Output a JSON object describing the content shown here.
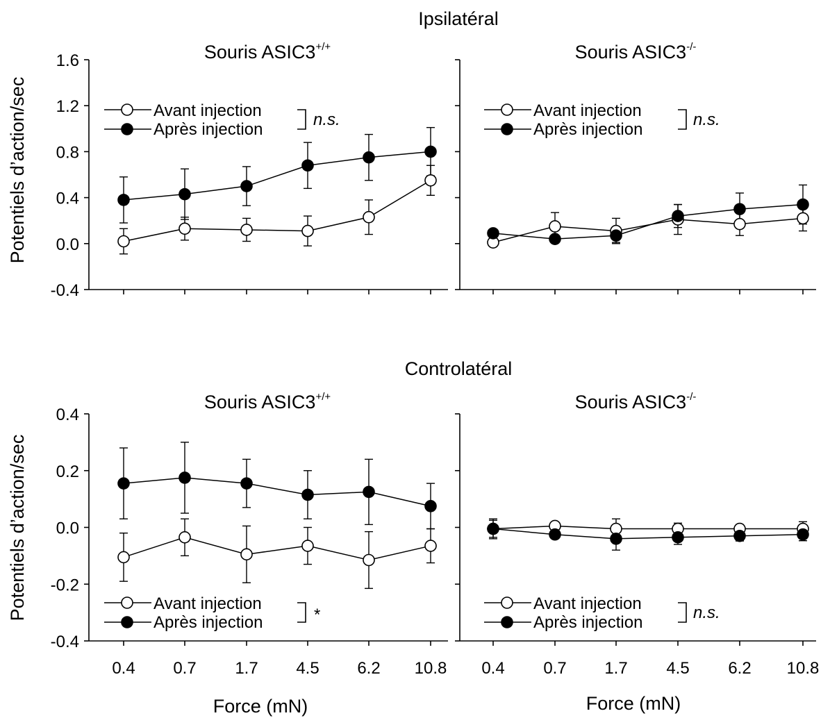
{
  "figure": {
    "row_titles": [
      "Ipsilatéral",
      "Controlatéral"
    ],
    "ylabel": "Potentiels d’action/sec",
    "xlabel": "Force (mN)",
    "panel_titles": [
      {
        "base": "Souris ASIC3",
        "sup": "+/+"
      },
      {
        "base": "Souris ASIC3",
        "sup": "-/-"
      },
      {
        "base": "Souris ASIC3",
        "sup": "+/+"
      },
      {
        "base": "Souris ASIC3",
        "sup": "-/-"
      }
    ],
    "legend": {
      "before": "Avant injection",
      "after": "Après injection"
    },
    "significance": [
      "n.s.",
      "n.s.",
      "*",
      "n.s."
    ],
    "colors": {
      "ink": "#000000",
      "open_fill": "#ffffff"
    }
  },
  "chart_data": [
    {
      "type": "line",
      "title": "Souris ASIC3+/+",
      "group": "Ipsilatéral",
      "xlabel": "",
      "ylabel": "Potentiels d’action/sec",
      "categories": [
        "0.4",
        "0.7",
        "1.7",
        "4.5",
        "6.2",
        "10.8"
      ],
      "ylim": [
        -0.4,
        1.6
      ],
      "yticks": [
        "-0.4",
        "0.0",
        "0.4",
        "0.8",
        "1.2",
        "1.6"
      ],
      "legend_position": "top-left",
      "series": [
        {
          "name": "Avant injection",
          "marker": "open",
          "values": [
            0.02,
            0.13,
            0.12,
            0.11,
            0.23,
            0.55
          ],
          "errors": [
            0.11,
            0.1,
            0.1,
            0.13,
            0.15,
            0.13
          ]
        },
        {
          "name": "Après injection",
          "marker": "filled",
          "values": [
            0.38,
            0.43,
            0.5,
            0.68,
            0.75,
            0.8
          ],
          "errors": [
            0.2,
            0.22,
            0.17,
            0.2,
            0.2,
            0.21
          ]
        }
      ],
      "significance": "n.s."
    },
    {
      "type": "line",
      "title": "Souris ASIC3-/-",
      "group": "Ipsilatéral",
      "xlabel": "",
      "ylabel": "",
      "categories": [
        "0.4",
        "0.7",
        "1.7",
        "4.5",
        "6.2",
        "10.8"
      ],
      "ylim": [
        -0.4,
        1.6
      ],
      "yticks": [
        "-0.4",
        "0.0",
        "0.4",
        "0.8",
        "1.2",
        "1.6"
      ],
      "legend_position": "top-left",
      "series": [
        {
          "name": "Avant injection",
          "marker": "open",
          "values": [
            0.01,
            0.15,
            0.11,
            0.21,
            0.17,
            0.22
          ],
          "errors": [
            0.0,
            0.12,
            0.11,
            0.13,
            0.1,
            0.11
          ]
        },
        {
          "name": "Après injection",
          "marker": "filled",
          "values": [
            0.09,
            0.04,
            0.07,
            0.24,
            0.3,
            0.34
          ],
          "errors": [
            0.0,
            0.0,
            0.06,
            0.1,
            0.14,
            0.17
          ]
        }
      ],
      "significance": "n.s."
    },
    {
      "type": "line",
      "title": "Souris ASIC3+/+",
      "group": "Controlatéral",
      "xlabel": "Force (mN)",
      "ylabel": "Potentiels d’action/sec",
      "categories": [
        "0.4",
        "0.7",
        "1.7",
        "4.5",
        "6.2",
        "10.8"
      ],
      "ylim": [
        -0.4,
        0.4
      ],
      "yticks": [
        "-0.4",
        "-0.2",
        "0.0",
        "0.2",
        "0.4"
      ],
      "legend_position": "bottom-left",
      "series": [
        {
          "name": "Avant injection",
          "marker": "open",
          "values": [
            -0.105,
            -0.035,
            -0.095,
            -0.065,
            -0.115,
            -0.065
          ],
          "errors": [
            0.085,
            0.065,
            0.1,
            0.065,
            0.1,
            0.06
          ]
        },
        {
          "name": "Après injection",
          "marker": "filled",
          "values": [
            0.155,
            0.175,
            0.155,
            0.115,
            0.125,
            0.075
          ],
          "errors": [
            0.125,
            0.125,
            0.085,
            0.085,
            0.115,
            0.08
          ]
        }
      ],
      "significance": "*"
    },
    {
      "type": "line",
      "title": "Souris ASIC3-/-",
      "group": "Controlatéral",
      "xlabel": "Force (mN)",
      "ylabel": "",
      "categories": [
        "0.4",
        "0.7",
        "1.7",
        "4.5",
        "6.2",
        "10.8"
      ],
      "ylim": [
        -0.4,
        0.4
      ],
      "yticks": [
        "-0.4",
        "-0.2",
        "0.0",
        "0.2",
        "0.4"
      ],
      "legend_position": "bottom-left",
      "series": [
        {
          "name": "Avant injection",
          "marker": "open",
          "values": [
            -0.005,
            0.005,
            -0.005,
            -0.005,
            -0.005,
            -0.005
          ],
          "errors": [
            0.03,
            0.0,
            0.035,
            0.02,
            0.015,
            0.025
          ]
        },
        {
          "name": "Après injection",
          "marker": "filled",
          "values": [
            -0.005,
            -0.025,
            -0.04,
            -0.035,
            -0.03,
            -0.025
          ],
          "errors": [
            0.035,
            0.0,
            0.04,
            0.025,
            0.018,
            0.022
          ]
        }
      ],
      "significance": "n.s."
    }
  ]
}
